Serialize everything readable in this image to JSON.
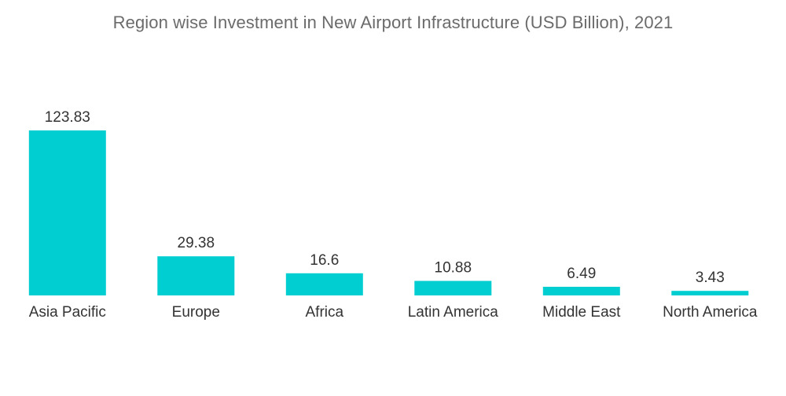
{
  "chart_data": {
    "type": "bar",
    "title": "Region wise Investment in New Airport Infrastructure (USD Billion), 2021",
    "categories": [
      "Asia Pacific",
      "Europe",
      "Africa",
      "Latin America",
      "Middle East",
      "North America"
    ],
    "values": [
      123.83,
      29.38,
      16.6,
      10.88,
      6.49,
      3.43
    ],
    "value_labels": [
      "123.83",
      "29.38",
      "16.6",
      "10.88",
      "6.49",
      "3.43"
    ],
    "xlabel": "",
    "ylabel": "",
    "ylim": [
      0,
      123.83
    ],
    "grid": false,
    "legend": "none",
    "bar_color": "#00CED1"
  }
}
